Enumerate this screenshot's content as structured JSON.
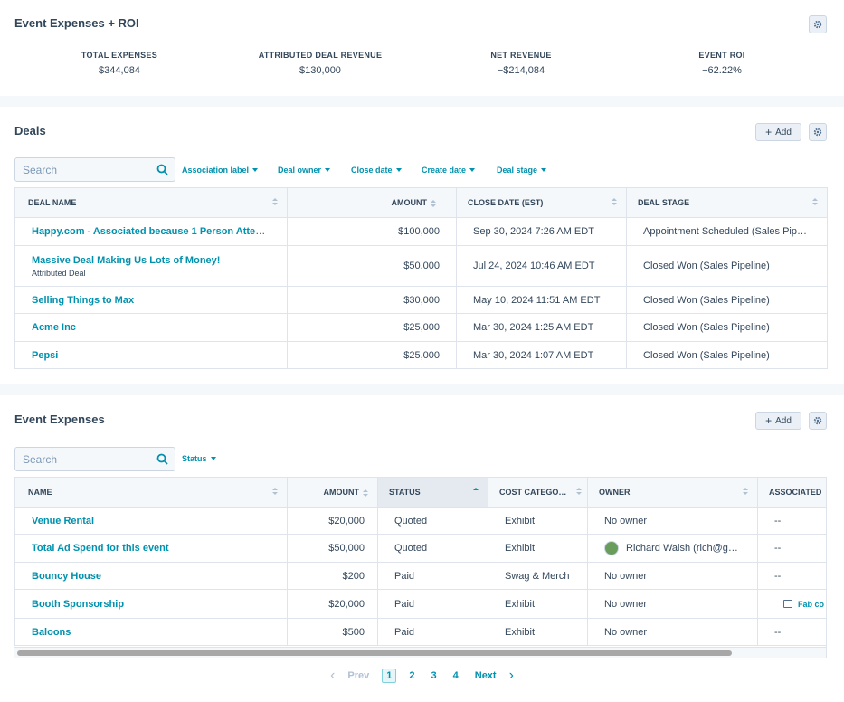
{
  "roi": {
    "title": "Event Expenses + ROI",
    "kpis": [
      {
        "label": "TOTAL EXPENSES",
        "value": "$344,084"
      },
      {
        "label": "ATTRIBUTED DEAL REVENUE",
        "value": "$130,000"
      },
      {
        "label": "NET REVENUE",
        "value": "−$214,084"
      },
      {
        "label": "EVENT ROI",
        "value": "−62.22%"
      }
    ]
  },
  "deals": {
    "title": "Deals",
    "add_label": "Add",
    "search_placeholder": "Search",
    "filters": [
      "Association label",
      "Deal owner",
      "Close date",
      "Create date",
      "Deal stage"
    ],
    "columns": [
      "DEAL NAME",
      "AMOUNT",
      "CLOSE DATE (EST)",
      "DEAL STAGE"
    ],
    "rows": [
      {
        "name": "Happy.com - Associated because 1 Person Atten…",
        "sub": "",
        "amount": "$100,000",
        "close": "Sep 30, 2024 7:26 AM EDT",
        "stage": "Appointment Scheduled (Sales Pipe…"
      },
      {
        "name": "Massive Deal Making Us Lots of Money!",
        "sub": "Attributed Deal",
        "amount": "$50,000",
        "close": "Jul 24, 2024 10:46 AM EDT",
        "stage": "Closed Won (Sales Pipeline)"
      },
      {
        "name": "Selling Things to Max",
        "sub": "",
        "amount": "$30,000",
        "close": "May 10, 2024 11:51 AM EDT",
        "stage": "Closed Won (Sales Pipeline)"
      },
      {
        "name": "Acme Inc",
        "sub": "",
        "amount": "$25,000",
        "close": "Mar 30, 2024 1:25 AM EDT",
        "stage": "Closed Won (Sales Pipeline)"
      },
      {
        "name": "Pepsi",
        "sub": "",
        "amount": "$25,000",
        "close": "Mar 30, 2024 1:07 AM EDT",
        "stage": "Closed Won (Sales Pipeline)"
      }
    ]
  },
  "expenses": {
    "title": "Event Expenses",
    "add_label": "Add",
    "search_placeholder": "Search",
    "filters": [
      "Status"
    ],
    "columns": [
      "NAME",
      "AMOUNT",
      "STATUS",
      "COST CATEGO…",
      "OWNER",
      "ASSOCIATED"
    ],
    "rows": [
      {
        "name": "Venue Rental",
        "amount": "$20,000",
        "status": "Quoted",
        "category": "Exhibit",
        "owner": "No owner",
        "associated": "--",
        "has_avatar": false
      },
      {
        "name": "Total Ad Spend for this event",
        "amount": "$50,000",
        "status": "Quoted",
        "category": "Exhibit",
        "owner": "Richard Walsh (rich@gr…",
        "associated": "--",
        "has_avatar": true
      },
      {
        "name": "Bouncy House",
        "amount": "$200",
        "status": "Paid",
        "category": "Swag & Merch",
        "owner": "No owner",
        "associated": "--",
        "has_avatar": false
      },
      {
        "name": "Booth Sponsorship",
        "amount": "$20,000",
        "status": "Paid",
        "category": "Exhibit",
        "owner": "No owner",
        "associated": "Fab co",
        "has_avatar": false
      },
      {
        "name": "Baloons",
        "amount": "$500",
        "status": "Paid",
        "category": "Exhibit",
        "owner": "No owner",
        "associated": "--",
        "has_avatar": false
      }
    ],
    "pager": {
      "prev": "Prev",
      "pages": [
        "1",
        "2",
        "3",
        "4"
      ],
      "next": "Next"
    }
  }
}
